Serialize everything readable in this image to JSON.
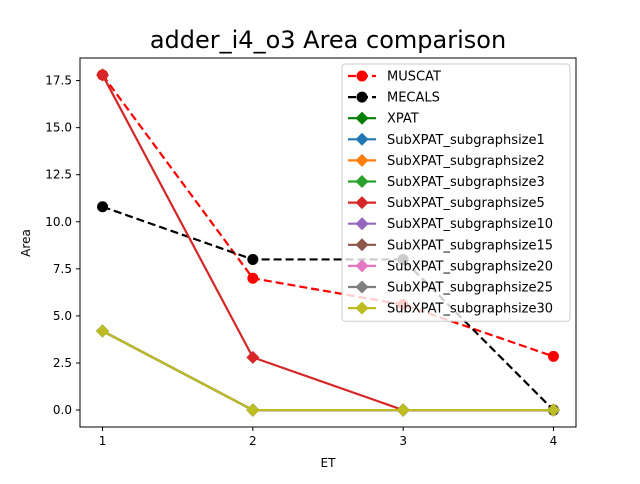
{
  "chart_data": {
    "type": "line",
    "title": "adder_i4_o3 Area comparison",
    "xlabel": "ET",
    "ylabel": "Area",
    "x": [
      1,
      2,
      3,
      4
    ],
    "xlim": [
      0.85,
      4.15
    ],
    "ylim": [
      -0.9,
      18.7
    ],
    "xticks": [
      "1",
      "2",
      "3",
      "4"
    ],
    "yticks": [
      0.0,
      2.5,
      5.0,
      7.5,
      10.0,
      12.5,
      15.0,
      17.5
    ],
    "ytick_labels": [
      "0.0",
      "2.5",
      "5.0",
      "7.5",
      "10.0",
      "12.5",
      "15.0",
      "17.5"
    ],
    "grid": false,
    "legend_position": "top-right",
    "series": [
      {
        "name": "MUSCAT",
        "values": [
          17.8,
          7.0,
          5.6,
          2.85
        ],
        "color": "#ff0000",
        "dash": "dashed",
        "marker": "circle"
      },
      {
        "name": "MECALS",
        "values": [
          10.8,
          8.0,
          8.0,
          0.0
        ],
        "color": "#000000",
        "dash": "dashed",
        "marker": "circle"
      },
      {
        "name": "XPAT",
        "values": [
          4.2,
          0.0,
          0.0,
          0.0
        ],
        "color": "#008000",
        "dash": "solid",
        "marker": "diamond"
      },
      {
        "name": "SubXPAT_subgraphsize1",
        "values": [
          4.2,
          0.0,
          0.0,
          0.0
        ],
        "color": "#1f77b4",
        "dash": "solid",
        "marker": "diamond"
      },
      {
        "name": "SubXPAT_subgraphsize2",
        "values": [
          4.2,
          0.0,
          0.0,
          0.0
        ],
        "color": "#ff7f0e",
        "dash": "solid",
        "marker": "diamond"
      },
      {
        "name": "SubXPAT_subgraphsize3",
        "values": [
          4.2,
          0.0,
          0.0,
          0.0
        ],
        "color": "#2ca02c",
        "dash": "solid",
        "marker": "diamond"
      },
      {
        "name": "SubXPAT_subgraphsize5",
        "values": [
          17.8,
          2.8,
          0.0,
          0.0
        ],
        "color": "#d62728",
        "dash": "solid",
        "marker": "diamond"
      },
      {
        "name": "SubXPAT_subgraphsize10",
        "values": [
          4.2,
          0.0,
          0.0,
          0.0
        ],
        "color": "#9467bd",
        "dash": "solid",
        "marker": "diamond"
      },
      {
        "name": "SubXPAT_subgraphsize15",
        "values": [
          4.2,
          0.0,
          0.0,
          0.0
        ],
        "color": "#8c564b",
        "dash": "solid",
        "marker": "diamond"
      },
      {
        "name": "SubXPAT_subgraphsize20",
        "values": [
          4.2,
          0.0,
          0.0,
          0.0
        ],
        "color": "#e377c2",
        "dash": "solid",
        "marker": "diamond"
      },
      {
        "name": "SubXPAT_subgraphsize25",
        "values": [
          4.2,
          0.0,
          0.0,
          0.0
        ],
        "color": "#7f7f7f",
        "dash": "solid",
        "marker": "diamond"
      },
      {
        "name": "SubXPAT_subgraphsize30",
        "values": [
          4.2,
          0.0,
          0.0,
          0.0
        ],
        "color": "#bcbd22",
        "dash": "solid",
        "marker": "diamond"
      }
    ]
  }
}
